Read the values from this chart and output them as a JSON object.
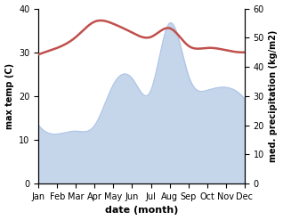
{
  "months": [
    "Jan",
    "Feb",
    "Mar",
    "Apr",
    "May",
    "Jun",
    "Jul",
    "Aug",
    "Sep",
    "Oct",
    "Nov",
    "Dec"
  ],
  "month_indices": [
    0,
    1,
    2,
    3,
    4,
    5,
    6,
    7,
    8,
    9,
    10,
    11
  ],
  "temperature": [
    29.5,
    31.0,
    33.5,
    37.0,
    36.5,
    34.5,
    33.5,
    35.5,
    31.5,
    31.0,
    30.5,
    30.0
  ],
  "precipitation": [
    20.0,
    17.0,
    18.0,
    20.0,
    34.0,
    36.0,
    32.0,
    55.0,
    37.0,
    32.0,
    33.0,
    29.0
  ],
  "temp_color": "#c0504d",
  "precip_fill_color": "#c5d5ea",
  "precip_line_color": "#aec6e8",
  "temp_ylim": [
    0,
    40
  ],
  "precip_ylim": [
    0,
    60
  ],
  "temp_yticks": [
    0,
    10,
    20,
    30,
    40
  ],
  "precip_yticks": [
    0,
    10,
    20,
    30,
    40,
    50,
    60
  ],
  "ylabel_left": "max temp (C)",
  "ylabel_right": "med. precipitation (kg/m2)",
  "xlabel": "date (month)",
  "figsize": [
    3.18,
    2.47
  ],
  "dpi": 100
}
